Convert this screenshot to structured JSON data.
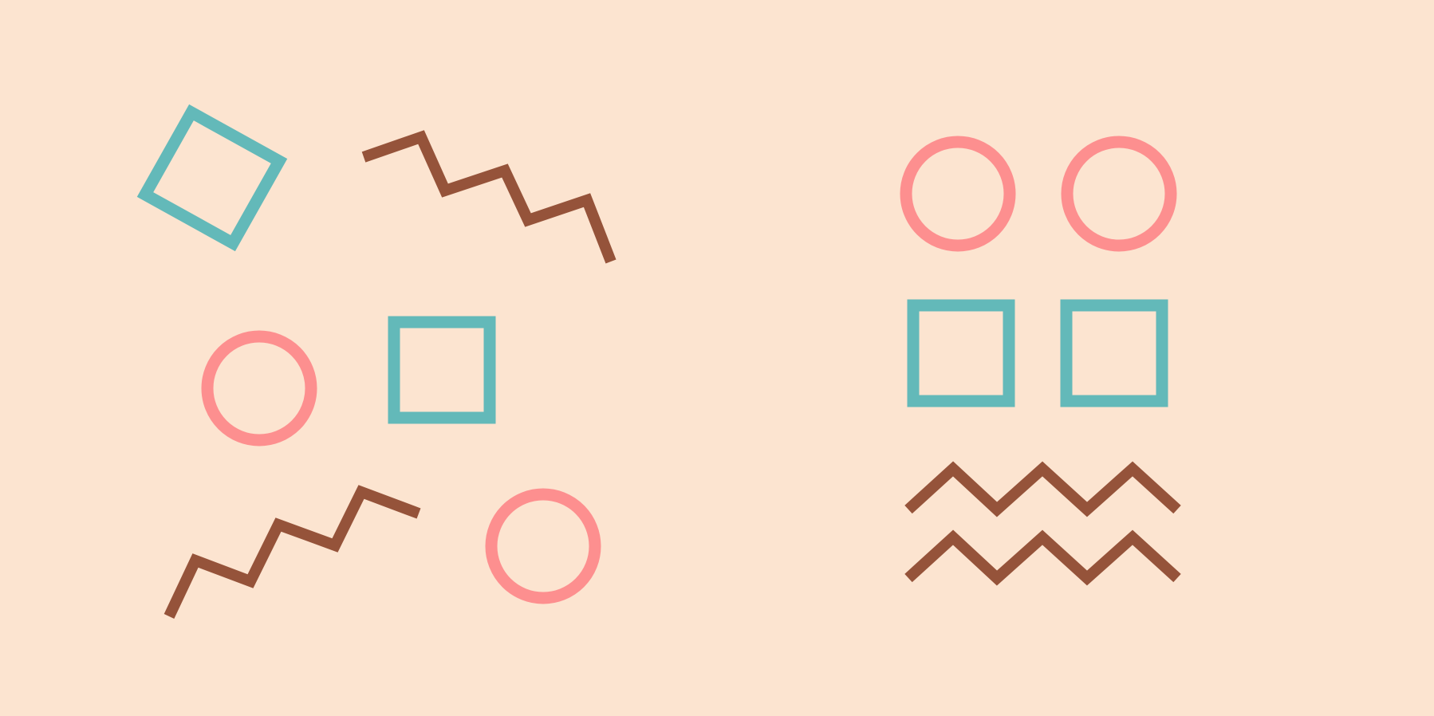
{
  "colors": {
    "background": "#FCE4D0",
    "teal": "#63B9B9",
    "pink": "#FD8F8F",
    "brown": "#95533A"
  },
  "shapes": [
    {
      "kind": "rotated-square-outline",
      "color": "teal",
      "icon": "square-icon"
    },
    {
      "kind": "zigzag-line",
      "color": "brown",
      "icon": "zigzag-icon"
    },
    {
      "kind": "circle-outline",
      "color": "pink",
      "icon": "circle-icon"
    },
    {
      "kind": "square-outline",
      "color": "teal",
      "icon": "square-icon"
    },
    {
      "kind": "zigzag-line",
      "color": "brown",
      "icon": "zigzag-icon"
    },
    {
      "kind": "circle-outline",
      "color": "pink",
      "icon": "circle-icon"
    },
    {
      "kind": "circle-outline",
      "color": "pink",
      "icon": "circle-icon"
    },
    {
      "kind": "circle-outline",
      "color": "pink",
      "icon": "circle-icon"
    },
    {
      "kind": "square-outline",
      "color": "teal",
      "icon": "square-icon"
    },
    {
      "kind": "square-outline",
      "color": "teal",
      "icon": "square-icon"
    },
    {
      "kind": "zigzag-line",
      "color": "brown",
      "icon": "zigzag-icon"
    },
    {
      "kind": "zigzag-line",
      "color": "brown",
      "icon": "zigzag-icon"
    }
  ]
}
